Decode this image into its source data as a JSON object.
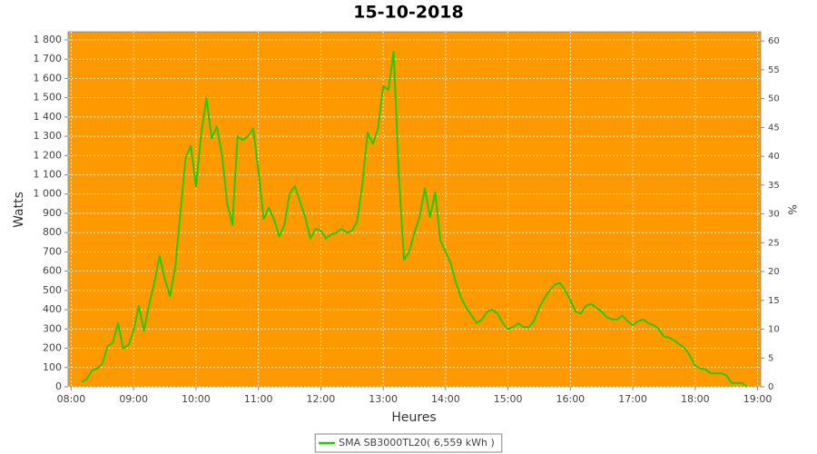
{
  "chart_data": {
    "type": "line",
    "title": "15-10-2018",
    "x_label": "Heures",
    "y_label": "Watts",
    "y2_label": "%",
    "x": [
      "08:10",
      "08:15",
      "08:20",
      "08:25",
      "08:30",
      "08:35",
      "08:40",
      "08:45",
      "08:50",
      "08:55",
      "09:00",
      "09:05",
      "09:10",
      "09:15",
      "09:20",
      "09:25",
      "09:30",
      "09:35",
      "09:40",
      "09:45",
      "09:50",
      "09:55",
      "10:00",
      "10:05",
      "10:10",
      "10:15",
      "10:20",
      "10:25",
      "10:30",
      "10:35",
      "10:40",
      "10:45",
      "10:50",
      "10:55",
      "11:00",
      "11:05",
      "11:10",
      "11:15",
      "11:20",
      "11:25",
      "11:30",
      "11:35",
      "11:40",
      "11:45",
      "11:50",
      "11:55",
      "12:00",
      "12:05",
      "12:10",
      "12:15",
      "12:20",
      "12:25",
      "12:30",
      "12:35",
      "12:40",
      "12:45",
      "12:50",
      "12:55",
      "13:00",
      "13:05",
      "13:10",
      "13:15",
      "13:20",
      "13:25",
      "13:30",
      "13:35",
      "13:40",
      "13:45",
      "13:50",
      "13:55",
      "14:00",
      "14:05",
      "14:10",
      "14:15",
      "14:20",
      "14:25",
      "14:30",
      "14:35",
      "14:40",
      "14:45",
      "14:50",
      "14:55",
      "15:00",
      "15:05",
      "15:10",
      "15:15",
      "15:20",
      "15:25",
      "15:30",
      "15:35",
      "15:40",
      "15:45",
      "15:50",
      "15:55",
      "16:00",
      "16:05",
      "16:10",
      "16:15",
      "16:20",
      "16:25",
      "16:30",
      "16:35",
      "16:40",
      "16:45",
      "16:50",
      "16:55",
      "17:00",
      "17:05",
      "17:10",
      "17:15",
      "17:20",
      "17:25",
      "17:30",
      "17:35",
      "17:40",
      "17:45",
      "17:50",
      "17:55",
      "18:00",
      "18:05",
      "18:10",
      "18:15",
      "18:20",
      "18:25",
      "18:30",
      "18:35",
      "18:40",
      "18:45",
      "18:50"
    ],
    "series": [
      {
        "name": "SMA SB3000TL20( 6,559 kWh )",
        "color": "#22cc00",
        "values": [
          25,
          40,
          85,
          95,
          120,
          210,
          230,
          330,
          200,
          215,
          290,
          420,
          290,
          430,
          540,
          680,
          560,
          470,
          620,
          900,
          1190,
          1250,
          1040,
          1310,
          1500,
          1290,
          1350,
          1200,
          950,
          840,
          1300,
          1280,
          1300,
          1340,
          1120,
          870,
          930,
          870,
          780,
          840,
          1000,
          1040,
          960,
          880,
          770,
          820,
          810,
          770,
          790,
          800,
          820,
          800,
          810,
          860,
          1050,
          1320,
          1260,
          1340,
          1560,
          1540,
          1740,
          1100,
          660,
          700,
          800,
          880,
          1030,
          880,
          1010,
          760,
          700,
          640,
          540,
          460,
          410,
          370,
          330,
          350,
          390,
          400,
          380,
          330,
          300,
          310,
          330,
          310,
          310,
          340,
          410,
          460,
          500,
          530,
          540,
          500,
          450,
          390,
          380,
          420,
          430,
          410,
          390,
          360,
          350,
          350,
          370,
          340,
          320,
          340,
          350,
          330,
          320,
          300,
          260,
          255,
          240,
          220,
          200,
          160,
          110,
          95,
          90,
          70,
          70,
          70,
          60,
          20,
          20,
          20,
          0
        ]
      }
    ],
    "xlim": [
      "07:57",
      "19:03"
    ],
    "xticks": [
      "08:00",
      "09:00",
      "10:00",
      "11:00",
      "12:00",
      "13:00",
      "14:00",
      "15:00",
      "16:00",
      "17:00",
      "18:00",
      "19:00"
    ],
    "ylim": [
      0,
      1842
    ],
    "yticks": [
      0,
      100,
      200,
      300,
      400,
      500,
      600,
      700,
      800,
      900,
      {
        "value": 1000,
        "label": "1 000"
      },
      {
        "value": 1100,
        "label": "1 100"
      },
      {
        "value": 1200,
        "label": "1 200"
      },
      {
        "value": 1300,
        "label": "1 300"
      },
      {
        "value": 1400,
        "label": "1 400"
      },
      {
        "value": 1500,
        "label": "1 500"
      },
      {
        "value": 1600,
        "label": "1 600"
      },
      {
        "value": 1700,
        "label": "1 700"
      },
      {
        "value": 1800,
        "label": "1 800"
      }
    ],
    "y2lim": [
      0,
      61.6
    ],
    "y2ticks": [
      0,
      5,
      10,
      15,
      20,
      25,
      30,
      35,
      40,
      45,
      50,
      55,
      60
    ],
    "grid": true,
    "plot_background": "#ff9900",
    "legend": "bottom"
  }
}
